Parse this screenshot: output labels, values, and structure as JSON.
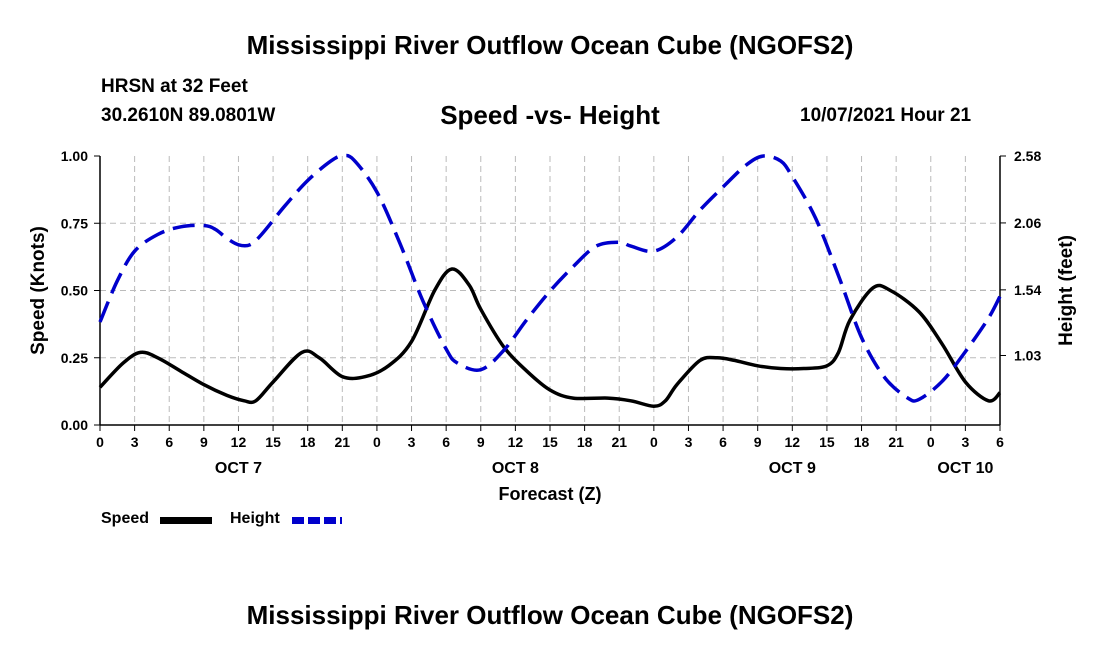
{
  "header": {
    "title": "Mississippi River Outflow Ocean Cube (NGOFS2)",
    "station_name": "HRSN at 32 Feet",
    "station_coords": "30.2610N  89.0801W",
    "subtitle": "Speed -vs- Height",
    "datetime": "10/07/2021 Hour 21"
  },
  "footer": {
    "title": "Mississippi River Outflow Ocean Cube (NGOFS2)"
  },
  "legend": {
    "speed_label": "Speed",
    "height_label": "Height"
  },
  "colors": {
    "speed": "#000000",
    "height": "#0000cc",
    "grid": "#bbbbbb"
  },
  "chart_data": {
    "type": "line",
    "xlabel": "Forecast (Z)",
    "xlim": [
      0,
      78
    ],
    "x_ticks": [
      0,
      3,
      6,
      9,
      12,
      15,
      18,
      21,
      24,
      27,
      30,
      33,
      36,
      39,
      42,
      45,
      48,
      51,
      54,
      57,
      60,
      63,
      66,
      69,
      72,
      75,
      78
    ],
    "x_tick_labels": [
      "0",
      "3",
      "6",
      "9",
      "12",
      "15",
      "18",
      "21",
      "0",
      "3",
      "6",
      "9",
      "12",
      "15",
      "18",
      "21",
      "0",
      "3",
      "6",
      "9",
      "12",
      "15",
      "18",
      "21",
      "0",
      "3",
      "6"
    ],
    "day_labels": [
      {
        "x": 12,
        "label": "OCT 7"
      },
      {
        "x": 36,
        "label": "OCT 8"
      },
      {
        "x": 60,
        "label": "OCT 9"
      },
      {
        "x": 75,
        "label": "OCT 10"
      }
    ],
    "y_left": {
      "label": "Speed (Knots)",
      "ylim": [
        0,
        1
      ],
      "ticks": [
        0,
        0.25,
        0.5,
        0.75,
        1
      ],
      "tick_labels": [
        "0.00",
        "0.25",
        "0.50",
        "0.75",
        "1.00"
      ]
    },
    "y_right": {
      "label": "Height (feet)",
      "ylim": [
        0.49,
        2.58
      ],
      "ticks": [
        1.03,
        1.54,
        2.06,
        2.58
      ],
      "tick_labels": [
        "1.03",
        "1.54",
        "2.06",
        "2.58"
      ]
    },
    "series": [
      {
        "name": "Speed",
        "axis": "left",
        "x": [
          0,
          2,
          3.5,
          5,
          7,
          9,
          11,
          12.5,
          13.5,
          15,
          17.5,
          19,
          21,
          23,
          25,
          27,
          29,
          30.5,
          32,
          33,
          35,
          37,
          39,
          41,
          44,
          46,
          48,
          49,
          50,
          52,
          53.5,
          55,
          57,
          59,
          61,
          63,
          64,
          65,
          67,
          68.5,
          71,
          73,
          75,
          77,
          78
        ],
        "values": [
          0.14,
          0.23,
          0.27,
          0.25,
          0.2,
          0.15,
          0.11,
          0.09,
          0.09,
          0.16,
          0.27,
          0.25,
          0.18,
          0.18,
          0.22,
          0.31,
          0.5,
          0.58,
          0.52,
          0.43,
          0.29,
          0.2,
          0.13,
          0.1,
          0.1,
          0.09,
          0.07,
          0.09,
          0.15,
          0.24,
          0.25,
          0.24,
          0.22,
          0.21,
          0.21,
          0.22,
          0.27,
          0.39,
          0.51,
          0.5,
          0.42,
          0.3,
          0.16,
          0.09,
          0.12
        ]
      },
      {
        "name": "Height",
        "axis": "right",
        "x": [
          0,
          1.5,
          3,
          5,
          7,
          9,
          10,
          11,
          12,
          13,
          14,
          16,
          18,
          20,
          21,
          22,
          24,
          26,
          28,
          30,
          31,
          33,
          35,
          37,
          39,
          41,
          43,
          45,
          46,
          48,
          50,
          52,
          54,
          56,
          57.5,
          59,
          60,
          62,
          64,
          66,
          68,
          70,
          71,
          73,
          75,
          77,
          78
        ],
        "values": [
          1.29,
          1.61,
          1.84,
          1.97,
          2.03,
          2.04,
          2.01,
          1.94,
          1.89,
          1.89,
          1.97,
          2.19,
          2.39,
          2.54,
          2.58,
          2.55,
          2.3,
          1.9,
          1.45,
          1.08,
          0.97,
          0.92,
          1.07,
          1.31,
          1.53,
          1.72,
          1.88,
          1.91,
          1.88,
          1.84,
          1.95,
          2.16,
          2.34,
          2.51,
          2.58,
          2.54,
          2.42,
          2.1,
          1.65,
          1.17,
          0.86,
          0.7,
          0.69,
          0.83,
          1.06,
          1.32,
          1.49
        ]
      }
    ]
  }
}
